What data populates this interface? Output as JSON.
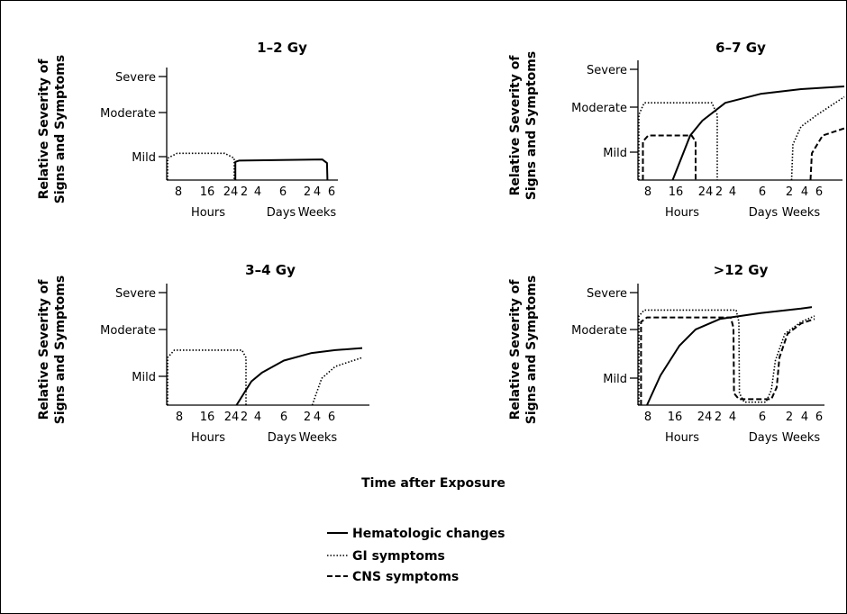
{
  "x_axis_title": "Time after Exposure",
  "legend": {
    "items": [
      {
        "label": "Hematologic changes",
        "style": "solid"
      },
      {
        "label": "GI symptoms",
        "style": "dotted"
      },
      {
        "label": "CNS symptoms",
        "style": "dashed"
      }
    ]
  },
  "chart_data": [
    {
      "type": "line",
      "title": "1–2 Gy",
      "ylabel": "Relative Severity of Signs and Symptoms",
      "y_ticks": [
        "Mild",
        "Moderate",
        "Severe"
      ],
      "x_ticks": [
        "8",
        "16",
        "24",
        "2",
        "4",
        "6",
        "2",
        "4",
        "6"
      ],
      "x_groups": [
        "Hours",
        "Days",
        "Weeks"
      ],
      "series": [
        {
          "name": "GI symptoms",
          "style": "dotted",
          "segments": [
            [
              [
                0,
                0
              ],
              [
                0,
                0.9
              ],
              [
                0.4,
                1.1
              ],
              [
                2.4,
                1.1
              ],
              [
                2.8,
                0.9
              ],
              [
                2.8,
                0
              ]
            ]
          ]
        },
        {
          "name": "Hematologic changes",
          "style": "solid",
          "segments": [
            [
              [
                2.85,
                0
              ],
              [
                2.85,
                0.75
              ],
              [
                3.0,
                0.8
              ],
              [
                6.5,
                0.85
              ],
              [
                6.7,
                0.7
              ],
              [
                6.72,
                0
              ]
            ]
          ]
        }
      ]
    },
    {
      "type": "line",
      "title": "6–7 Gy",
      "ylabel": "Relative Severity of Signs and Symptoms",
      "y_ticks": [
        "Mild",
        "Moderate",
        "Severe"
      ],
      "x_ticks": [
        "8",
        "16",
        "24",
        "2",
        "4",
        "6",
        "2",
        "4",
        "6"
      ],
      "x_groups": [
        "Hours",
        "Days",
        "Weeks"
      ],
      "series": [
        {
          "name": "GI symptoms",
          "style": "dotted",
          "segments": [
            [
              [
                0,
                0
              ],
              [
                0,
                2.2
              ],
              [
                0.2,
                2.6
              ],
              [
                2.7,
                2.6
              ],
              [
                2.9,
                2.2
              ],
              [
                2.9,
                0
              ]
            ],
            [
              [
                5.65,
                0
              ],
              [
                5.7,
                1.2
              ],
              [
                6.0,
                1.8
              ],
              [
                6.6,
                2.2
              ],
              [
                7.6,
                2.8
              ]
            ]
          ]
        },
        {
          "name": "CNS symptoms",
          "style": "dashed",
          "segments": [
            [
              [
                0.15,
                0
              ],
              [
                0.15,
                1.3
              ],
              [
                0.35,
                1.5
              ],
              [
                1.95,
                1.5
              ],
              [
                2.1,
                1.3
              ],
              [
                2.1,
                0
              ]
            ],
            [
              [
                6.35,
                0
              ],
              [
                6.4,
                0.9
              ],
              [
                6.8,
                1.5
              ],
              [
                7.8,
                1.8
              ]
            ]
          ]
        },
        {
          "name": "Hematologic changes",
          "style": "solid",
          "segments": [
            [
              [
                1.25,
                0
              ],
              [
                1.9,
                1.5
              ],
              [
                2.35,
                2.0
              ],
              [
                3.2,
                2.6
              ],
              [
                4.5,
                2.9
              ],
              [
                6.0,
                3.06
              ],
              [
                7.6,
                3.15
              ]
            ]
          ]
        }
      ]
    },
    {
      "type": "line",
      "title": "3–4 Gy",
      "ylabel": "Relative Severity of Signs and Symptoms",
      "y_ticks": [
        "Mild",
        "Moderate",
        "Severe"
      ],
      "x_ticks": [
        "8",
        "16",
        "24",
        "2",
        "4",
        "6",
        "2",
        "4",
        "6"
      ],
      "x_groups": [
        "Hours",
        "Days",
        "Weeks"
      ],
      "series": [
        {
          "name": "GI symptoms",
          "style": "dotted",
          "segments": [
            [
              [
                0,
                0
              ],
              [
                0,
                1.6
              ],
              [
                0.25,
                1.85
              ],
              [
                2.75,
                1.85
              ],
              [
                2.9,
                1.6
              ],
              [
                2.9,
                0
              ]
            ],
            [
              [
                5.35,
                0
              ],
              [
                5.7,
                0.9
              ],
              [
                6.2,
                1.3
              ],
              [
                7.2,
                1.6
              ]
            ]
          ]
        },
        {
          "name": "Hematologic changes",
          "style": "solid",
          "segments": [
            [
              [
                2.55,
                0
              ],
              [
                3.1,
                0.8
              ],
              [
                3.5,
                1.1
              ],
              [
                4.3,
                1.5
              ],
              [
                5.3,
                1.75
              ],
              [
                6.2,
                1.85
              ],
              [
                7.2,
                1.92
              ]
            ]
          ]
        }
      ]
    },
    {
      "type": "line",
      "title": ">12 Gy",
      "ylabel": "Relative Severity of Signs and Symptoms",
      "y_ticks": [
        "Mild",
        "Moderate",
        "Severe"
      ],
      "x_ticks": [
        "8",
        "16",
        "24",
        "2",
        "4",
        "6",
        "2",
        "4",
        "6"
      ],
      "x_groups": [
        "Hours",
        "Days",
        "Weeks"
      ],
      "series": [
        {
          "name": "GI symptoms",
          "style": "dotted",
          "segments": [
            [
              [
                0,
                0
              ],
              [
                0,
                3.0
              ],
              [
                0.2,
                3.2
              ],
              [
                3.6,
                3.2
              ],
              [
                3.7,
                2.8
              ],
              [
                3.72,
                0.4
              ],
              [
                3.9,
                0.1
              ],
              [
                4.7,
                0.1
              ],
              [
                4.9,
                0.5
              ],
              [
                5.05,
                1.5
              ],
              [
                5.4,
                2.4
              ],
              [
                6.0,
                2.8
              ],
              [
                6.5,
                3.0
              ]
            ]
          ]
        },
        {
          "name": "CNS symptoms",
          "style": "dashed",
          "segments": [
            [
              [
                0.08,
                0
              ],
              [
                0.08,
                2.8
              ],
              [
                0.3,
                2.95
              ],
              [
                3.4,
                2.95
              ],
              [
                3.5,
                2.6
              ],
              [
                3.52,
                0.4
              ],
              [
                3.7,
                0.2
              ],
              [
                4.9,
                0.2
              ],
              [
                5.1,
                0.6
              ],
              [
                5.2,
                1.6
              ],
              [
                5.5,
                2.4
              ],
              [
                6.0,
                2.75
              ],
              [
                6.5,
                2.9
              ]
            ]
          ]
        },
        {
          "name": "Hematologic changes",
          "style": "solid",
          "segments": [
            [
              [
                0.3,
                0
              ],
              [
                0.8,
                1.0
              ],
              [
                1.5,
                2.0
              ],
              [
                2.1,
                2.55
              ],
              [
                3.0,
                2.9
              ],
              [
                4.5,
                3.1
              ],
              [
                6.0,
                3.25
              ],
              [
                6.4,
                3.3
              ]
            ]
          ]
        }
      ]
    }
  ]
}
